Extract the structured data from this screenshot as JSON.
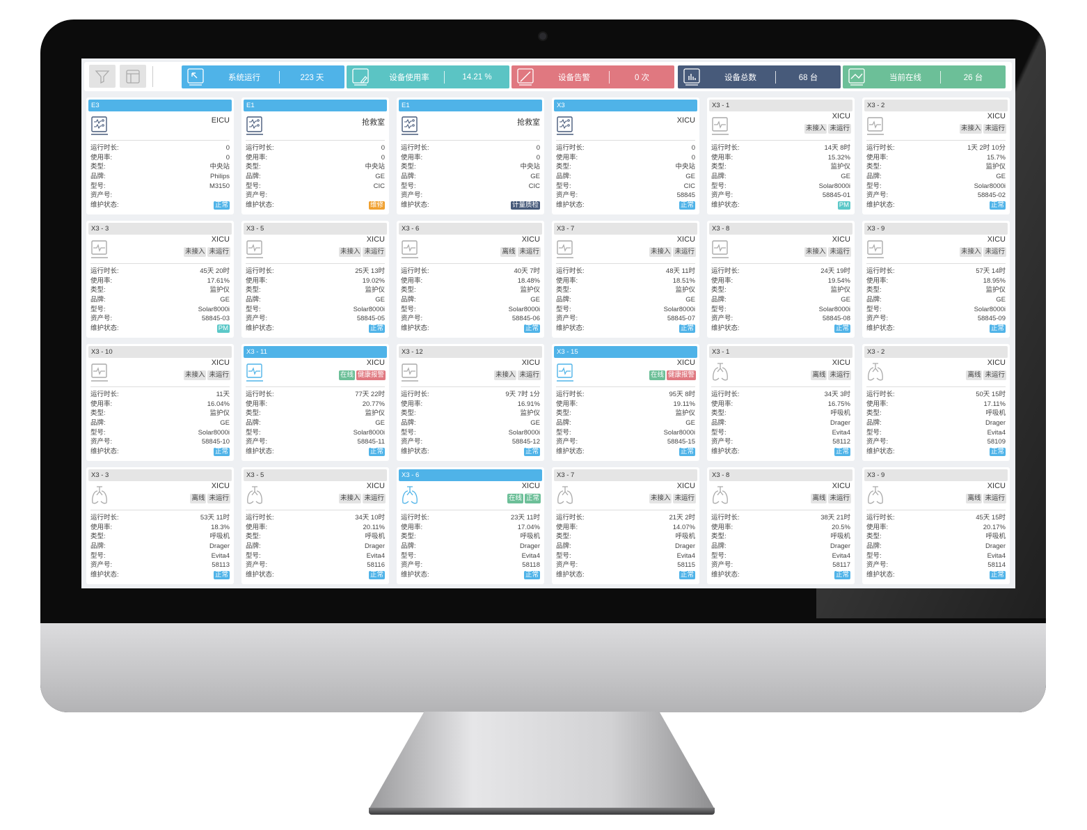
{
  "toolbar": {
    "filter_icon": "filter-icon",
    "layout_icon": "layout-icon"
  },
  "stats": [
    {
      "label": "系统运行",
      "value": "223 天",
      "color": "#4fb3e8",
      "icon": "cursor-icon"
    },
    {
      "label": "设备使用率",
      "value": "14.21 %",
      "color": "#5bc4c4",
      "icon": "edit-icon"
    },
    {
      "label": "设备告警",
      "value": "0 次",
      "color": "#e07880",
      "icon": "alarm-icon"
    },
    {
      "label": "设备总数",
      "value": "68 台",
      "color": "#475a7a",
      "icon": "bar-chart-icon"
    },
    {
      "label": "当前在线",
      "value": "26 台",
      "color": "#6cbf98",
      "icon": "line-chart-icon"
    }
  ],
  "labels": {
    "runtime": "运行时长:",
    "usage": "使用率:",
    "type": "类型:",
    "brand": "品牌:",
    "model": "型号:",
    "asset": "资产号:",
    "maintenance": "维护状态:"
  },
  "colors": {
    "gray_tag": "#e4e4e4",
    "online": "#6cbf98",
    "alarm": "#e07880",
    "normal": "#4fb3e8",
    "repair": "#f0a030",
    "inspect": "#475a7a",
    "pm": "#5bc8c8"
  },
  "cards": [
    {
      "title": "E3",
      "active": true,
      "icon": "central-station",
      "dept": "EICU",
      "tags": [],
      "runtime": "0",
      "usage": "0",
      "type": "中央站",
      "brand": "Philips",
      "model": "M3150",
      "asset": "",
      "maintenance": {
        "label": "正常",
        "color": "#4fb3e8"
      }
    },
    {
      "title": "E1",
      "active": true,
      "icon": "central-station",
      "dept": "抢救室",
      "tags": [],
      "runtime": "0",
      "usage": "0",
      "type": "中央站",
      "brand": "GE",
      "model": "CIC",
      "asset": "",
      "maintenance": {
        "label": "维修",
        "color": "#f0a030"
      }
    },
    {
      "title": "E1",
      "active": true,
      "icon": "central-station",
      "dept": "抢救室",
      "tags": [],
      "runtime": "0",
      "usage": "0",
      "type": "中央站",
      "brand": "GE",
      "model": "CIC",
      "asset": "",
      "maintenance": {
        "label": "计量质检",
        "color": "#475a7a"
      }
    },
    {
      "title": "X3",
      "active": true,
      "icon": "central-station",
      "dept": "XICU",
      "tags": [],
      "runtime": "0",
      "usage": "0",
      "type": "中央站",
      "brand": "GE",
      "model": "CIC",
      "asset": "58845",
      "maintenance": {
        "label": "正常",
        "color": "#4fb3e8"
      }
    },
    {
      "title": "X3 - 1",
      "active": false,
      "icon": "monitor",
      "dept": "XICU",
      "tags": [
        {
          "label": "未接入"
        },
        {
          "label": "未运行"
        }
      ],
      "runtime": "14天 8时",
      "usage": "15.32%",
      "type": "监护仪",
      "brand": "GE",
      "model": "Solar8000i",
      "asset": "58845-01",
      "maintenance": {
        "label": "PM",
        "color": "#5bc8c8"
      }
    },
    {
      "title": "X3 - 2",
      "active": false,
      "icon": "monitor",
      "dept": "XICU",
      "tags": [
        {
          "label": "未接入"
        },
        {
          "label": "未运行"
        }
      ],
      "runtime": "1天 2时 10分",
      "usage": "15.7%",
      "type": "监护仪",
      "brand": "GE",
      "model": "Solar8000i",
      "asset": "58845-02",
      "maintenance": {
        "label": "正常",
        "color": "#4fb3e8"
      }
    },
    {
      "title": "X3 - 3",
      "active": false,
      "icon": "monitor",
      "dept": "XICU",
      "tags": [
        {
          "label": "未接入"
        },
        {
          "label": "未运行"
        }
      ],
      "runtime": "45天 20时",
      "usage": "17.61%",
      "type": "监护仪",
      "brand": "GE",
      "model": "Solar8000i",
      "asset": "58845-03",
      "maintenance": {
        "label": "PM",
        "color": "#5bc8c8"
      }
    },
    {
      "title": "X3 - 5",
      "active": false,
      "icon": "monitor",
      "dept": "XICU",
      "tags": [
        {
          "label": "未接入"
        },
        {
          "label": "未运行"
        }
      ],
      "runtime": "25天 13时",
      "usage": "19.02%",
      "type": "监护仪",
      "brand": "GE",
      "model": "Solar8000i",
      "asset": "58845-05",
      "maintenance": {
        "label": "正常",
        "color": "#4fb3e8"
      }
    },
    {
      "title": "X3 - 6",
      "active": false,
      "icon": "monitor",
      "dept": "XICU",
      "tags": [
        {
          "label": "离线"
        },
        {
          "label": "未运行"
        }
      ],
      "runtime": "40天 7时",
      "usage": "18.48%",
      "type": "监护仪",
      "brand": "GE",
      "model": "Solar8000i",
      "asset": "58845-06",
      "maintenance": {
        "label": "正常",
        "color": "#4fb3e8"
      }
    },
    {
      "title": "X3 - 7",
      "active": false,
      "icon": "monitor",
      "dept": "XICU",
      "tags": [
        {
          "label": "未接入"
        },
        {
          "label": "未运行"
        }
      ],
      "runtime": "48天 11时",
      "usage": "18.51%",
      "type": "监护仪",
      "brand": "GE",
      "model": "Solar8000i",
      "asset": "58845-07",
      "maintenance": {
        "label": "正常",
        "color": "#4fb3e8"
      }
    },
    {
      "title": "X3 - 8",
      "active": false,
      "icon": "monitor",
      "dept": "XICU",
      "tags": [
        {
          "label": "未接入"
        },
        {
          "label": "未运行"
        }
      ],
      "runtime": "24天 19时",
      "usage": "19.54%",
      "type": "监护仪",
      "brand": "GE",
      "model": "Solar8000i",
      "asset": "58845-08",
      "maintenance": {
        "label": "正常",
        "color": "#4fb3e8"
      }
    },
    {
      "title": "X3 - 9",
      "active": false,
      "icon": "monitor",
      "dept": "XICU",
      "tags": [
        {
          "label": "未接入"
        },
        {
          "label": "未运行"
        }
      ],
      "runtime": "57天 14时",
      "usage": "18.95%",
      "type": "监护仪",
      "brand": "GE",
      "model": "Solar8000i",
      "asset": "58845-09",
      "maintenance": {
        "label": "正常",
        "color": "#4fb3e8"
      }
    },
    {
      "title": "X3 - 10",
      "active": false,
      "icon": "monitor",
      "dept": "XICU",
      "tags": [
        {
          "label": "未接入"
        },
        {
          "label": "未运行"
        }
      ],
      "runtime": "11天",
      "usage": "16.04%",
      "type": "监护仪",
      "brand": "GE",
      "model": "Solar8000i",
      "asset": "58845-10",
      "maintenance": {
        "label": "正常",
        "color": "#4fb3e8"
      }
    },
    {
      "title": "X3 - 11",
      "active": true,
      "icon": "monitor",
      "dept": "XICU",
      "tags": [
        {
          "label": "在线",
          "color": "#6cbf98"
        },
        {
          "label": "健康报警",
          "color": "#e07880"
        }
      ],
      "runtime": "77天 22时",
      "usage": "20.77%",
      "type": "监护仪",
      "brand": "GE",
      "model": "Solar8000i",
      "asset": "58845-11",
      "maintenance": {
        "label": "正常",
        "color": "#4fb3e8"
      }
    },
    {
      "title": "X3 - 12",
      "active": false,
      "icon": "monitor",
      "dept": "XICU",
      "tags": [
        {
          "label": "未接入"
        },
        {
          "label": "未运行"
        }
      ],
      "runtime": "9天 7时 1分",
      "usage": "16.91%",
      "type": "监护仪",
      "brand": "GE",
      "model": "Solar8000i",
      "asset": "58845-12",
      "maintenance": {
        "label": "正常",
        "color": "#4fb3e8"
      }
    },
    {
      "title": "X3 - 15",
      "active": true,
      "icon": "monitor",
      "dept": "XICU",
      "tags": [
        {
          "label": "在线",
          "color": "#6cbf98"
        },
        {
          "label": "健康报警",
          "color": "#e07880"
        }
      ],
      "runtime": "95天 8时",
      "usage": "19.11%",
      "type": "监护仪",
      "brand": "GE",
      "model": "Solar8000i",
      "asset": "58845-15",
      "maintenance": {
        "label": "正常",
        "color": "#4fb3e8"
      }
    },
    {
      "title": "X3 - 1",
      "active": false,
      "icon": "ventilator",
      "dept": "XICU",
      "tags": [
        {
          "label": "离线"
        },
        {
          "label": "未运行"
        }
      ],
      "runtime": "34天 3时",
      "usage": "16.75%",
      "type": "呼吸机",
      "brand": "Drager",
      "model": "Evita4",
      "asset": "58112",
      "maintenance": {
        "label": "正常",
        "color": "#4fb3e8"
      }
    },
    {
      "title": "X3 - 2",
      "active": false,
      "icon": "ventilator",
      "dept": "XICU",
      "tags": [
        {
          "label": "离线"
        },
        {
          "label": "未运行"
        }
      ],
      "runtime": "50天 15时",
      "usage": "17.11%",
      "type": "呼吸机",
      "brand": "Drager",
      "model": "Evita4",
      "asset": "58109",
      "maintenance": {
        "label": "正常",
        "color": "#4fb3e8"
      }
    },
    {
      "title": "X3 - 3",
      "active": false,
      "icon": "ventilator",
      "dept": "XICU",
      "tags": [
        {
          "label": "离线"
        },
        {
          "label": "未运行"
        }
      ],
      "runtime": "53天 11时",
      "usage": "18.3%",
      "type": "呼吸机",
      "brand": "Drager",
      "model": "Evita4",
      "asset": "58113",
      "maintenance": {
        "label": "正常",
        "color": "#4fb3e8"
      }
    },
    {
      "title": "X3 - 5",
      "active": false,
      "icon": "ventilator",
      "dept": "XICU",
      "tags": [
        {
          "label": "未接入"
        },
        {
          "label": "未运行"
        }
      ],
      "runtime": "34天 10时",
      "usage": "20.11%",
      "type": "呼吸机",
      "brand": "Drager",
      "model": "Evita4",
      "asset": "58116",
      "maintenance": {
        "label": "正常",
        "color": "#4fb3e8"
      }
    },
    {
      "title": "X3 - 6",
      "active": true,
      "icon": "ventilator",
      "dept": "XICU",
      "tags": [
        {
          "label": "在线",
          "color": "#6cbf98"
        },
        {
          "label": "正常",
          "color": "#6cbf98"
        }
      ],
      "runtime": "23天 11时",
      "usage": "17.04%",
      "type": "呼吸机",
      "brand": "Drager",
      "model": "Evita4",
      "asset": "58118",
      "maintenance": {
        "label": "正常",
        "color": "#4fb3e8"
      }
    },
    {
      "title": "X3 - 7",
      "active": false,
      "icon": "ventilator",
      "dept": "XICU",
      "tags": [
        {
          "label": "未接入"
        },
        {
          "label": "未运行"
        }
      ],
      "runtime": "21天 2时",
      "usage": "14.07%",
      "type": "呼吸机",
      "brand": "Drager",
      "model": "Evita4",
      "asset": "58115",
      "maintenance": {
        "label": "正常",
        "color": "#4fb3e8"
      }
    },
    {
      "title": "X3 - 8",
      "active": false,
      "icon": "ventilator",
      "dept": "XICU",
      "tags": [
        {
          "label": "离线"
        },
        {
          "label": "未运行"
        }
      ],
      "runtime": "38天 21时",
      "usage": "20.5%",
      "type": "呼吸机",
      "brand": "Drager",
      "model": "Evita4",
      "asset": "58117",
      "maintenance": {
        "label": "正常",
        "color": "#4fb3e8"
      }
    },
    {
      "title": "X3 - 9",
      "active": false,
      "icon": "ventilator",
      "dept": "XICU",
      "tags": [
        {
          "label": "离线"
        },
        {
          "label": "未运行"
        }
      ],
      "runtime": "45天 15时",
      "usage": "20.17%",
      "type": "呼吸机",
      "brand": "Drager",
      "model": "Evita4",
      "asset": "58114",
      "maintenance": {
        "label": "正常",
        "color": "#4fb3e8"
      }
    }
  ]
}
